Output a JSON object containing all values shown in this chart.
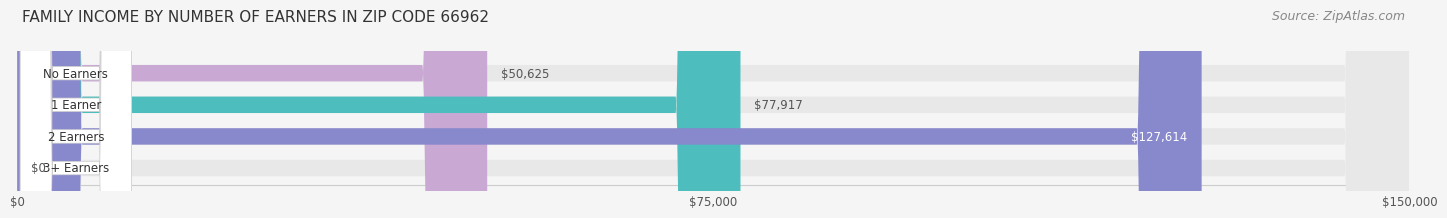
{
  "title": "FAMILY INCOME BY NUMBER OF EARNERS IN ZIP CODE 66962",
  "source": "Source: ZipAtlas.com",
  "categories": [
    "No Earners",
    "1 Earner",
    "2 Earners",
    "3+ Earners"
  ],
  "values": [
    50625,
    77917,
    127614,
    0
  ],
  "labels": [
    "$50,625",
    "$77,917",
    "$127,614",
    "$0"
  ],
  "bar_colors": [
    "#c9a8d4",
    "#4dbdbd",
    "#8888cc",
    "#f7a8b8"
  ],
  "bar_bg_color": "#e8e8e8",
  "x_max": 150000,
  "x_ticks": [
    0,
    75000,
    150000
  ],
  "x_tick_labels": [
    "$0",
    "$75,000",
    "$150,000"
  ],
  "background_color": "#f5f5f5",
  "title_fontsize": 11,
  "source_fontsize": 9
}
